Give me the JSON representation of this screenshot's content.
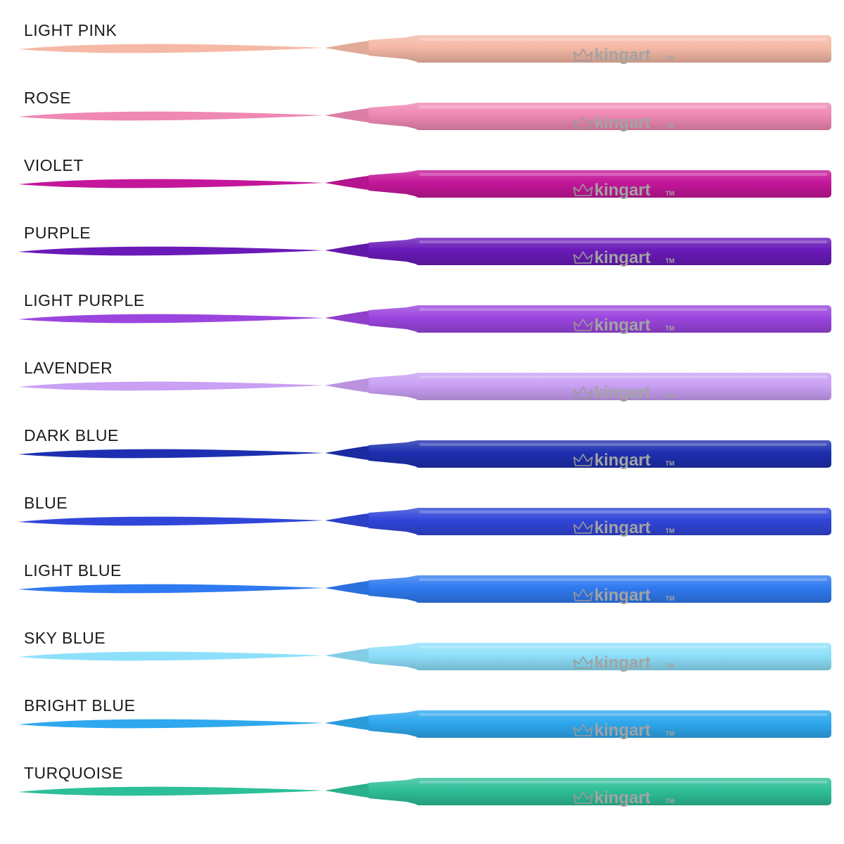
{
  "brand": {
    "name": "kingart",
    "trademark": "TM",
    "logo": "crown-icon"
  },
  "colors": [
    {
      "name": "LIGHT PINK",
      "color": "#f5b9a6"
    },
    {
      "name": "ROSE",
      "color": "#ef88b3"
    },
    {
      "name": "VIOLET",
      "color": "#c4169a"
    },
    {
      "name": "PURPLE",
      "color": "#6a1ab8"
    },
    {
      "name": "LIGHT PURPLE",
      "color": "#9b45de"
    },
    {
      "name": "LAVENDER",
      "color": "#c9a0f4"
    },
    {
      "name": "DARK BLUE",
      "color": "#1d2fb0"
    },
    {
      "name": "BLUE",
      "color": "#3146d9"
    },
    {
      "name": "LIGHT BLUE",
      "color": "#2f7af0"
    },
    {
      "name": "SKY BLUE",
      "color": "#8ee0fa"
    },
    {
      "name": "BRIGHT BLUE",
      "color": "#2ea8ee"
    },
    {
      "name": "TURQUOISE",
      "color": "#2dbf98"
    }
  ]
}
